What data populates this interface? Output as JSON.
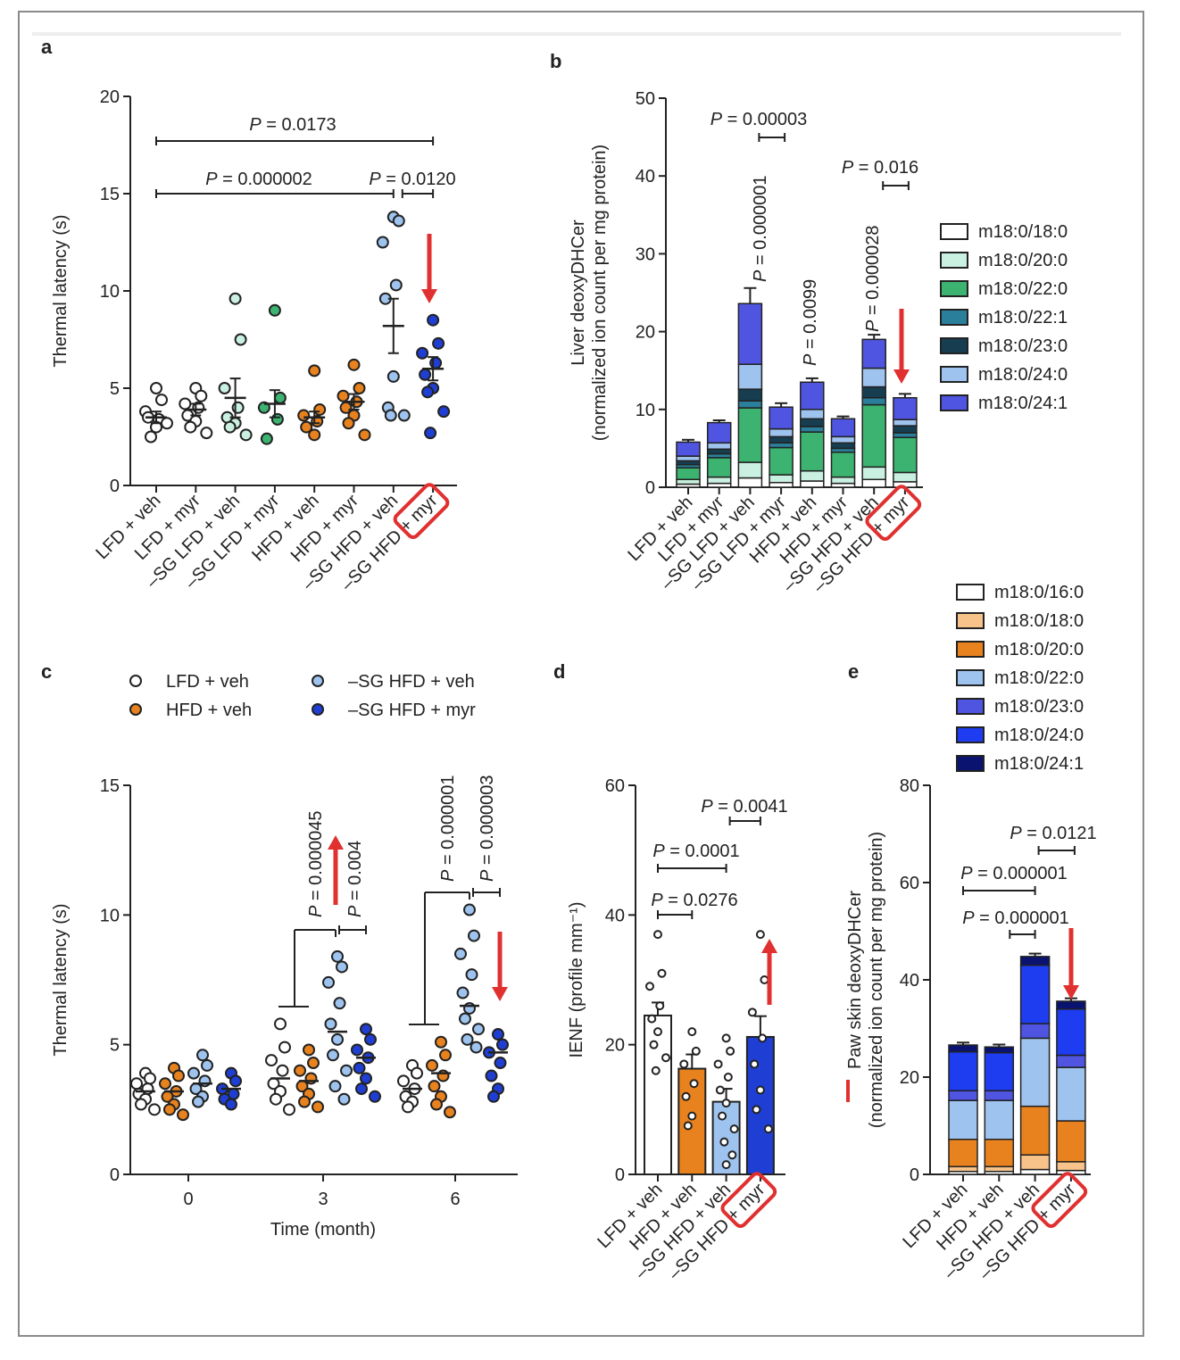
{
  "chart_data": [
    {
      "panel": "a",
      "type": "scatter",
      "ylabel": "Thermal latency (s)",
      "ylim": [
        0,
        20
      ],
      "yticks": [
        "0",
        "5",
        "10",
        "15",
        "20"
      ],
      "categories": [
        "LFD + veh",
        "LFD + myr",
        "–SG LFD + veh",
        "–SG LFD + myr",
        "HFD + veh",
        "HFD + myr",
        "–SG HFD + veh",
        "–SG HFD + myr"
      ],
      "highlight_label": "myr",
      "colors": [
        "#ffffff",
        "#ffffff",
        "#c9f0e0",
        "#3cb371",
        "#e8821e",
        "#e8821e",
        "#9ec3ee",
        "#1f3fd4"
      ],
      "means": [
        3.5,
        3.9,
        4.5,
        4.2,
        3.5,
        4.3,
        8.2,
        6.0
      ],
      "sems": [
        0.3,
        0.3,
        1.0,
        0.7,
        0.3,
        0.4,
        1.4,
        0.6
      ],
      "points": [
        [
          5.0,
          4.4,
          3.8,
          3.4,
          3.5,
          3.0,
          2.5,
          3.2
        ],
        [
          5.0,
          4.6,
          4.2,
          4.0,
          3.6,
          3.3,
          3.0,
          2.7
        ],
        [
          9.6,
          7.5,
          5.0,
          4.0,
          3.5,
          3.2,
          3.0,
          2.6
        ],
        [
          9.0,
          4.5,
          4.0,
          3.4,
          2.4
        ],
        [
          5.9,
          3.9,
          3.6,
          3.3,
          3.0,
          2.6
        ],
        [
          6.2,
          5.0,
          4.6,
          4.3,
          4.0,
          3.6,
          3.2,
          2.6
        ],
        [
          13.8,
          13.6,
          12.5,
          10.3,
          9.6,
          5.6,
          4.0,
          3.6,
          3.6
        ],
        [
          8.5,
          7.3,
          6.8,
          6.3,
          5.7,
          5.0,
          4.8,
          3.8,
          2.7
        ]
      ],
      "annotations": [
        {
          "text": "P = 0.0173",
          "from": 0,
          "to": 7
        },
        {
          "text": "P = 0.000002",
          "from": 0,
          "to": 6
        },
        {
          "text": "P = 0.0120",
          "from": 6,
          "to": 7
        }
      ]
    },
    {
      "panel": "b",
      "type": "bar",
      "ylabel": "Liver deoxyDHCer",
      "ylabel2": "(normalized ion count per mg protein)",
      "ylim": [
        0,
        50
      ],
      "yticks": [
        "0",
        "10",
        "20",
        "30",
        "40",
        "50"
      ],
      "categories": [
        "LFD + veh",
        "LFD + myr",
        "–SG LFD + veh",
        "–SG LFD + myr",
        "HFD + veh",
        "HFD + myr",
        "–SG HFD + veh",
        "–SG HFD + myr"
      ],
      "highlight_label": "myr",
      "series": [
        {
          "name": "m18:0/18:0",
          "color": "#ffffff",
          "values": [
            0.4,
            0.5,
            1.2,
            0.6,
            0.8,
            0.5,
            1.0,
            0.7
          ]
        },
        {
          "name": "m18:0/20:0",
          "color": "#c9f0e0",
          "values": [
            0.6,
            0.8,
            2.0,
            1.0,
            1.3,
            0.8,
            1.6,
            1.2
          ]
        },
        {
          "name": "m18:0/22:0",
          "color": "#3cb371",
          "values": [
            1.5,
            2.5,
            7.0,
            3.5,
            5.0,
            3.2,
            8.0,
            4.5
          ]
        },
        {
          "name": "m18:0/22:1",
          "color": "#2a7f9a",
          "values": [
            0.4,
            0.5,
            0.9,
            0.6,
            0.7,
            0.5,
            0.9,
            0.6
          ]
        },
        {
          "name": "m18:0/23:0",
          "color": "#163e50",
          "values": [
            0.5,
            0.6,
            1.5,
            0.8,
            1.0,
            0.7,
            1.4,
            0.9
          ]
        },
        {
          "name": "m18:0/24:0",
          "color": "#9ec3ee",
          "values": [
            0.6,
            0.8,
            3.2,
            1.0,
            1.2,
            0.8,
            2.4,
            0.8
          ]
        },
        {
          "name": "m18:0/24:1",
          "color": "#4f55e0",
          "values": [
            1.8,
            2.6,
            7.8,
            2.8,
            3.5,
            2.3,
            3.7,
            2.8
          ]
        }
      ],
      "errors": [
        0.3,
        0.3,
        2.0,
        0.5,
        0.5,
        0.3,
        0.6,
        0.5
      ],
      "annotations": [
        {
          "text": "P = 0.00003",
          "from": 2,
          "to": 3
        },
        {
          "text": "P = 0.000001",
          "at": 2
        },
        {
          "text": "P = 0.0099",
          "at": 4
        },
        {
          "text": "P = 0.016",
          "from": 6,
          "to": 7
        },
        {
          "text": "P = 0.000028",
          "at": 6
        }
      ]
    },
    {
      "panel": "c",
      "type": "scatter",
      "xlabel": "Time (month)",
      "ylabel": "Thermal latency (s)",
      "ylim": [
        0,
        15
      ],
      "yticks": [
        "0",
        "5",
        "10",
        "15"
      ],
      "x": [
        "0",
        "3",
        "6"
      ],
      "series": [
        {
          "name": "LFD + veh",
          "color": "#ffffff",
          "points": [
            [
              3.9,
              3.7,
              3.5,
              3.3,
              3.1,
              2.9,
              2.7,
              2.5
            ],
            [
              5.8,
              4.9,
              4.4,
              4.0,
              3.5,
              3.2,
              2.9,
              2.5
            ],
            [
              4.2,
              3.9,
              3.6,
              3.3,
              3.0,
              2.8,
              2.6
            ]
          ],
          "means": [
            3.2,
            3.7,
            3.3
          ]
        },
        {
          "name": "HFD + veh",
          "color": "#e8821e",
          "points": [
            [
              4.1,
              3.8,
              3.5,
              3.2,
              3.0,
              2.7,
              2.5,
              2.3
            ],
            [
              4.8,
              4.3,
              4.0,
              3.7,
              3.4,
              3.1,
              2.8,
              2.6
            ],
            [
              5.1,
              4.6,
              4.2,
              3.8,
              3.4,
              3.0,
              2.7,
              2.4
            ]
          ],
          "means": [
            3.2,
            3.6,
            3.9
          ]
        },
        {
          "name": "–SG HFD + veh",
          "color": "#9ec3ee",
          "points": [
            [
              4.6,
              4.2,
              3.9,
              3.6,
              3.3,
              3.0,
              2.8
            ],
            [
              8.4,
              8.0,
              7.4,
              6.6,
              5.8,
              5.2,
              4.6,
              4.0,
              3.4,
              2.9
            ],
            [
              10.2,
              9.2,
              8.5,
              7.7,
              7.0,
              6.4,
              6.0,
              5.6,
              5.2,
              4.9
            ]
          ],
          "means": [
            3.5,
            5.5,
            6.5
          ]
        },
        {
          "name": "–SG HFD + myr",
          "color": "#1f3fd4",
          "points": [
            [
              3.9,
              3.6,
              3.3,
              3.1,
              2.9,
              2.7
            ],
            [
              5.6,
              5.2,
              4.8,
              4.5,
              4.1,
              3.7,
              3.3,
              3.0
            ],
            [
              5.4,
              5.0,
              4.7,
              4.3,
              3.8,
              3.3,
              3.0
            ]
          ],
          "means": [
            3.3,
            4.5,
            4.7
          ]
        }
      ],
      "annotations": [
        {
          "text": "P = 0.000045",
          "time": "3"
        },
        {
          "text": "P = 0.004",
          "time": "3"
        },
        {
          "text": "P = 0.000001",
          "time": "6"
        },
        {
          "text": "P = 0.000003",
          "time": "6"
        }
      ]
    },
    {
      "panel": "d",
      "type": "bar",
      "ylabel": "IENF (profile mm⁻¹)",
      "ylim": [
        0,
        60
      ],
      "yticks": [
        "0",
        "20",
        "40",
        "60"
      ],
      "categories": [
        "LFD + veh",
        "HFD + veh",
        "–SG HFD + veh",
        "–SG HFD + myr"
      ],
      "highlight_label": "myr",
      "colors": [
        "#ffffff",
        "#e8821e",
        "#9ec3ee",
        "#1f3fd4"
      ],
      "values": [
        24.5,
        16.3,
        11.2,
        21.2
      ],
      "errors": [
        2.0,
        2.2,
        2.0,
        3.2
      ],
      "points": [
        [
          37.0,
          31.0,
          29.0,
          26.0,
          24.0,
          22.0,
          20.0,
          18.0,
          16.0
        ],
        [
          22.0,
          19.0,
          17.0,
          14.0,
          12.0,
          9.0,
          7.5
        ],
        [
          21.0,
          19.0,
          17.0,
          15.0,
          13.0,
          11.0,
          9.0,
          7.0,
          5.0,
          3.0,
          1.5
        ],
        [
          37.0,
          30.0,
          25.0,
          21.0,
          17.0,
          13.0,
          10.0,
          7.0
        ]
      ],
      "annotations": [
        {
          "text": "P = 0.0041",
          "from": 2,
          "to": 3
        },
        {
          "text": "P = 0.0001",
          "from": 0,
          "to": 2
        },
        {
          "text": "P = 0.0276",
          "from": 0,
          "to": 1
        }
      ]
    },
    {
      "panel": "e",
      "type": "bar",
      "ylabel": "Paw skin deoxyDHCer",
      "ylabel2": "(normalized ion count per mg protein)",
      "ylim": [
        0,
        80
      ],
      "yticks": [
        "0",
        "20",
        "40",
        "60",
        "80"
      ],
      "categories": [
        "LFD + veh",
        "HFD + veh",
        "–SG HFD + veh",
        "–SG HFD + myr"
      ],
      "highlight_label": "myr",
      "series": [
        {
          "name": "m18:0/16:0",
          "color": "#ffffff",
          "values": [
            0.6,
            0.6,
            1.0,
            0.8
          ]
        },
        {
          "name": "m18:0/18:0",
          "color": "#f7c38b",
          "values": [
            1.0,
            1.0,
            3.0,
            1.8
          ]
        },
        {
          "name": "m18:0/20:0",
          "color": "#e8821e",
          "values": [
            5.6,
            5.6,
            10.0,
            8.4
          ]
        },
        {
          "name": "m18:0/22:0",
          "color": "#9ec3ee",
          "values": [
            8.0,
            8.0,
            14.0,
            11.0
          ]
        },
        {
          "name": "m18:0/23:0",
          "color": "#4f55e0",
          "values": [
            2.0,
            2.0,
            3.0,
            2.5
          ]
        },
        {
          "name": "m18:0/24:0",
          "color": "#1e3cf0",
          "values": [
            8.0,
            7.8,
            12.0,
            9.5
          ]
        },
        {
          "name": "m18:0/24:1",
          "color": "#0a1470",
          "values": [
            1.4,
            1.2,
            1.8,
            1.6
          ]
        }
      ],
      "errors": [
        0.5,
        0.5,
        0.6,
        0.6
      ],
      "annotations": [
        {
          "text": "P = 0.0121",
          "from": 2,
          "to": 3
        },
        {
          "text": "P = 0.000001",
          "from": 0,
          "to": 2
        },
        {
          "text": "P = 0.000001",
          "from": 1,
          "to": 2
        }
      ]
    }
  ],
  "panel_labels": [
    "a",
    "b",
    "c",
    "d",
    "e"
  ],
  "accent_red": "#e03030"
}
